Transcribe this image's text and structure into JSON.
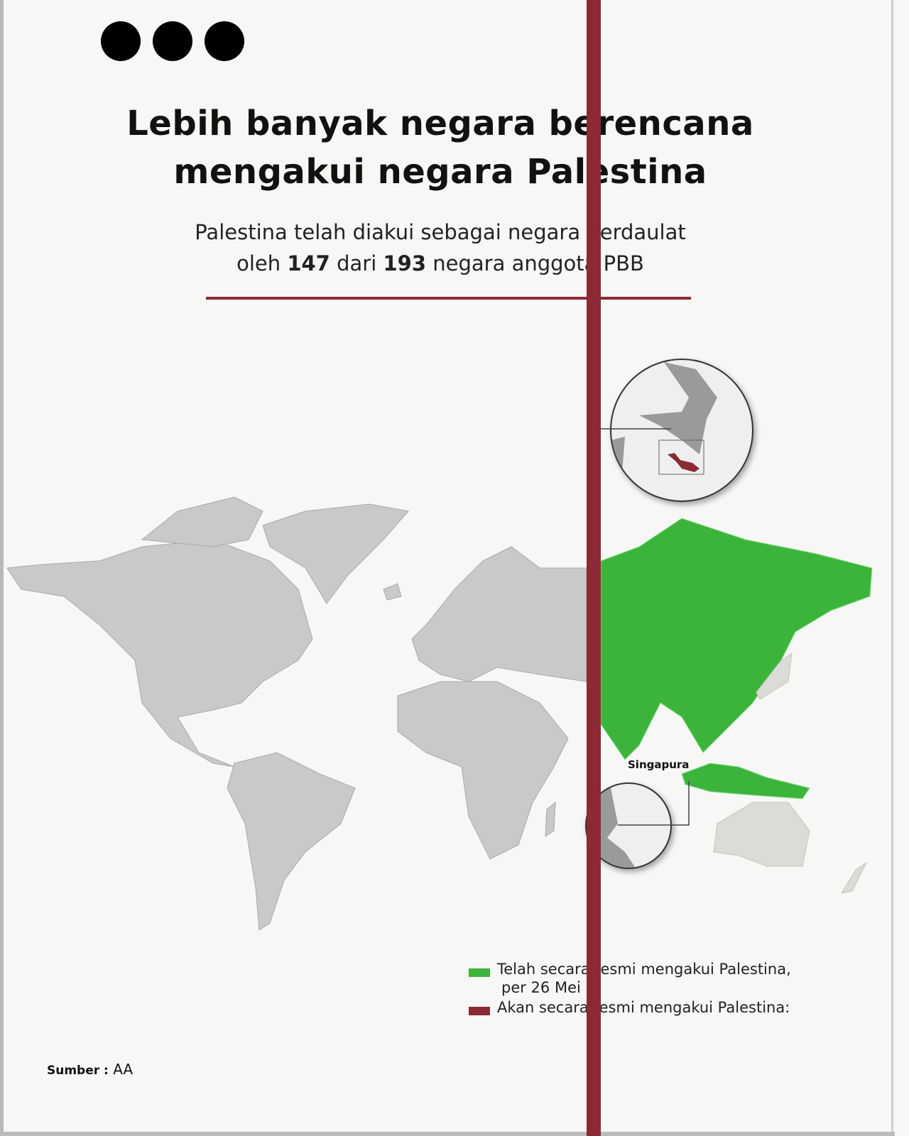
{
  "title_lines": [
    "Lebih banyak negara berencana",
    "mengakui negara Palestina"
  ],
  "subtitle": {
    "line1": "Palestina telah diakui sebagai negara berdaulat",
    "line2_prefix": "oleh ",
    "count_recognized": "147",
    "line2_mid": " dari ",
    "count_members": "193",
    "line2_suffix": " negara anggota PBB"
  },
  "map": {
    "inset_label_singapore": "Singapura",
    "colors": {
      "recognized": "#3cb43c",
      "will_recognize": "#8b2a35",
      "other": "#c9c9c9",
      "accent": "#8b2a35"
    }
  },
  "legend": [
    {
      "label_line1": "Telah secara resmi mengakui Palestina,",
      "label_line2": "per 26 Mei",
      "color": "#3cb43c"
    },
    {
      "label_line1": "Akan secara resmi mengakui Palestina:",
      "color": "#8b2a35"
    }
  ],
  "source": {
    "label": "Sumber :",
    "value": "AA"
  }
}
